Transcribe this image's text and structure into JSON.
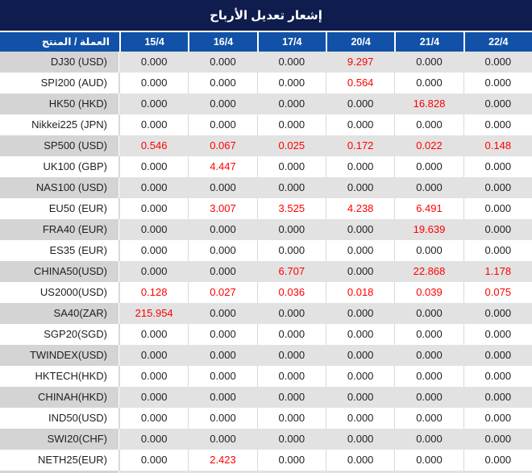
{
  "title": "إشعار تعديل الأرباح",
  "table": {
    "product_header": "العملة / المنتج",
    "date_headers": [
      "15/4",
      "16/4",
      "17/4",
      "20/4",
      "21/4",
      "22/4"
    ],
    "rows": [
      {
        "product": "DJ30 (USD)",
        "values": [
          "0.000",
          "0.000",
          "0.000",
          "9.297",
          "0.000",
          "0.000"
        ],
        "red_indices": [
          3
        ]
      },
      {
        "product": "SPI200 (AUD)",
        "values": [
          "0.000",
          "0.000",
          "0.000",
          "0.564",
          "0.000",
          "0.000"
        ],
        "red_indices": [
          3
        ]
      },
      {
        "product": "HK50 (HKD)",
        "values": [
          "0.000",
          "0.000",
          "0.000",
          "0.000",
          "16.828",
          "0.000"
        ],
        "red_indices": [
          4
        ]
      },
      {
        "product": "Nikkei225 (JPN)",
        "values": [
          "0.000",
          "0.000",
          "0.000",
          "0.000",
          "0.000",
          "0.000"
        ],
        "red_indices": []
      },
      {
        "product": "SP500 (USD)",
        "values": [
          "0.546",
          "0.067",
          "0.025",
          "0.172",
          "0.022",
          "0.148"
        ],
        "red_indices": [
          0,
          1,
          2,
          3,
          4,
          5
        ]
      },
      {
        "product": "UK100 (GBP)",
        "values": [
          "0.000",
          "4.447",
          "0.000",
          "0.000",
          "0.000",
          "0.000"
        ],
        "red_indices": [
          1
        ]
      },
      {
        "product": "NAS100 (USD)",
        "values": [
          "0.000",
          "0.000",
          "0.000",
          "0.000",
          "0.000",
          "0.000"
        ],
        "red_indices": []
      },
      {
        "product": "EU50 (EUR)",
        "values": [
          "0.000",
          "3.007",
          "3.525",
          "4.238",
          "6.491",
          "0.000"
        ],
        "red_indices": [
          1,
          2,
          3,
          4
        ]
      },
      {
        "product": "FRA40 (EUR)",
        "values": [
          "0.000",
          "0.000",
          "0.000",
          "0.000",
          "19.639",
          "0.000"
        ],
        "red_indices": [
          4
        ]
      },
      {
        "product": "ES35 (EUR)",
        "values": [
          "0.000",
          "0.000",
          "0.000",
          "0.000",
          "0.000",
          "0.000"
        ],
        "red_indices": []
      },
      {
        "product": "CHINA50(USD)",
        "values": [
          "0.000",
          "0.000",
          "6.707",
          "0.000",
          "22.868",
          "1.178"
        ],
        "red_indices": [
          2,
          4,
          5
        ]
      },
      {
        "product": "US2000(USD)",
        "values": [
          "0.128",
          "0.027",
          "0.036",
          "0.018",
          "0.039",
          "0.075"
        ],
        "red_indices": [
          0,
          1,
          2,
          3,
          4,
          5
        ]
      },
      {
        "product": "SA40(ZAR)",
        "values": [
          "215.954",
          "0.000",
          "0.000",
          "0.000",
          "0.000",
          "0.000"
        ],
        "red_indices": [
          0
        ]
      },
      {
        "product": "SGP20(SGD)",
        "values": [
          "0.000",
          "0.000",
          "0.000",
          "0.000",
          "0.000",
          "0.000"
        ],
        "red_indices": []
      },
      {
        "product": "TWINDEX(USD)",
        "values": [
          "0.000",
          "0.000",
          "0.000",
          "0.000",
          "0.000",
          "0.000"
        ],
        "red_indices": []
      },
      {
        "product": "HKTECH(HKD)",
        "values": [
          "0.000",
          "0.000",
          "0.000",
          "0.000",
          "0.000",
          "0.000"
        ],
        "red_indices": []
      },
      {
        "product": "CHINAH(HKD)",
        "values": [
          "0.000",
          "0.000",
          "0.000",
          "0.000",
          "0.000",
          "0.000"
        ],
        "red_indices": []
      },
      {
        "product": "IND50(USD)",
        "values": [
          "0.000",
          "0.000",
          "0.000",
          "0.000",
          "0.000",
          "0.000"
        ],
        "red_indices": []
      },
      {
        "product": "SWI20(CHF)",
        "values": [
          "0.000",
          "0.000",
          "0.000",
          "0.000",
          "0.000",
          "0.000"
        ],
        "red_indices": []
      },
      {
        "product": "NETH25(EUR)",
        "values": [
          "0.000",
          "2.423",
          "0.000",
          "0.000",
          "0.000",
          "0.000"
        ],
        "red_indices": [
          1
        ]
      }
    ]
  },
  "colors": {
    "title_bar_bg": "#0e1c4e",
    "header_bg": "#1152a8",
    "header_text": "#ffffff",
    "row_bg": "#ffffff",
    "row_alt_product_bg": "#d4d4d4",
    "row_alt_value_bg": "#e2e2e2",
    "row_divider": "#d9d9d9",
    "value_text": "#1f1f1f",
    "highlight_text": "#ff0000"
  }
}
